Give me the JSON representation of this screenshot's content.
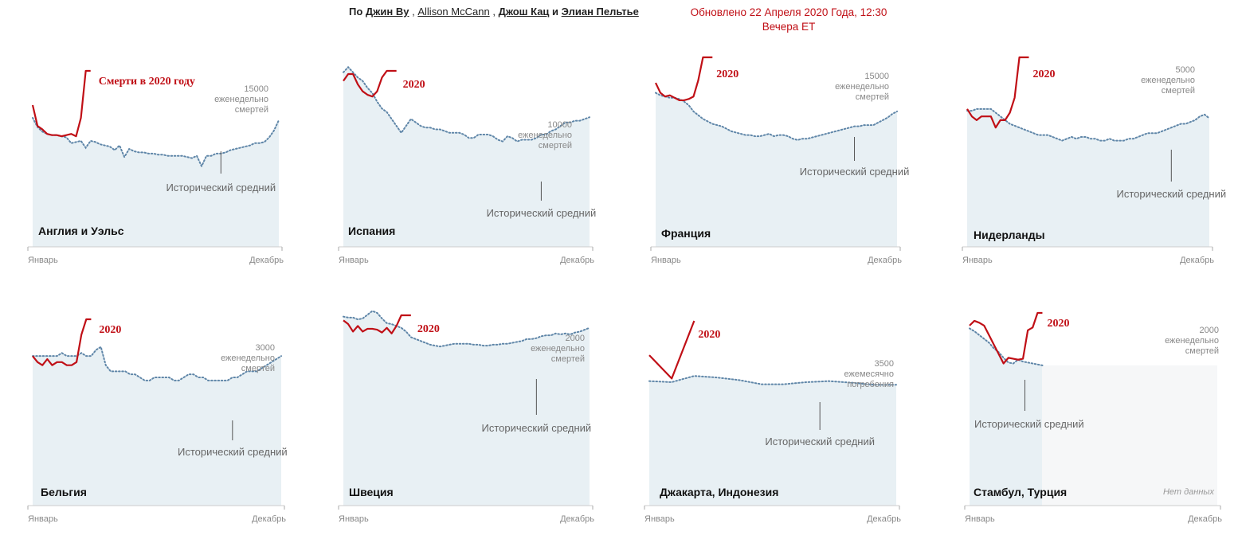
{
  "header": {
    "by_prefix": "По",
    "authors": [
      "Джин Ву",
      "Allison McCann",
      "Джош Кац",
      "Элиан Пельтье"
    ],
    "sep1": ",",
    "sep2": ",",
    "sep3": "и",
    "updated_line1": "Обновлено 22 Апреля 2020 Года, 12:30",
    "updated_line2": "Вечера ET"
  },
  "labels": {
    "x_start": "Январь",
    "x_end": "Декабрь",
    "historical": "Исторический средний",
    "no_data": "Нет данных"
  },
  "colors": {
    "series2020": "#c00f16",
    "historical": "#5f86a8",
    "fill": "#e8f0f4",
    "nodata_fill": "#f6f7f8"
  },
  "chart_data": [
    {
      "type": "line",
      "name": "Англия и Уэльс",
      "label_2020": "Смерти в 2020 году",
      "scale_lines": [
        "15000",
        "еженедельно",
        "смертей"
      ],
      "scale_value": 15000,
      "ylim": [
        0,
        15000
      ],
      "x_range": [
        1,
        52
      ],
      "historical": [
        11200,
        10400,
        10000,
        9800,
        9700,
        9700,
        9600,
        9500,
        9000,
        9100,
        9200,
        8600,
        9200,
        9100,
        8900,
        8800,
        8700,
        8400,
        8800,
        7800,
        8500,
        8300,
        8200,
        8200,
        8100,
        8100,
        8000,
        8000,
        7900,
        7900,
        7900,
        7900,
        7800,
        7700,
        7900,
        7000,
        7900,
        7900,
        8100,
        8100,
        8200,
        8400,
        8500,
        8600,
        8700,
        8800,
        9000,
        9000,
        9100,
        9500,
        10100,
        11000
      ],
      "y2020": [
        12300,
        10500,
        10200,
        9800,
        9700,
        9700,
        9600,
        9700,
        9800,
        9600,
        11200,
        16700,
        18500
      ]
    },
    {
      "type": "line",
      "name": "Испания",
      "label_2020": "2020",
      "scale_lines": [
        "10000",
        "еженедельно",
        "смертей"
      ],
      "scale_value": 10000,
      "ylim": [
        0,
        10000
      ],
      "x_range": [
        1,
        52
      ],
      "historical": [
        10100,
        10400,
        10100,
        9800,
        9600,
        9200,
        8900,
        8400,
        8000,
        7800,
        7400,
        7000,
        6600,
        7000,
        7400,
        7200,
        7000,
        6900,
        6900,
        6800,
        6800,
        6700,
        6600,
        6600,
        6600,
        6500,
        6300,
        6300,
        6500,
        6500,
        6500,
        6400,
        6200,
        6100,
        6400,
        6300,
        6100,
        6200,
        6200,
        6200,
        6300,
        6500,
        6500,
        6700,
        6800,
        7000,
        7200,
        7200,
        7300,
        7300,
        7400,
        7500
      ],
      "y2020": [
        9600,
        10000,
        10000,
        9400,
        9000,
        8800,
        8700,
        9000,
        9800,
        11600,
        15400,
        14800
      ]
    },
    {
      "type": "line",
      "name": "Франция",
      "label_2020": "2020",
      "scale_lines": [
        "15000",
        "еженедельно",
        "смертей"
      ],
      "scale_value": 15000,
      "ylim": [
        0,
        15000
      ],
      "x_range": [
        1,
        52
      ],
      "historical": [
        12400,
        12200,
        12100,
        12000,
        12000,
        11900,
        11700,
        11400,
        10900,
        10600,
        10300,
        10100,
        9900,
        9800,
        9700,
        9500,
        9300,
        9200,
        9100,
        9000,
        9000,
        8900,
        8900,
        9000,
        9100,
        8900,
        9000,
        9000,
        8900,
        8700,
        8600,
        8700,
        8700,
        8800,
        8900,
        9000,
        9100,
        9200,
        9300,
        9400,
        9500,
        9600,
        9700,
        9700,
        9800,
        9800,
        9800,
        10000,
        10200,
        10400,
        10700,
        10900
      ],
      "y2020": [
        13200,
        12400,
        12100,
        12200,
        12000,
        11800,
        11800,
        11900,
        12100,
        13400,
        16000,
        18500,
        20400
      ]
    },
    {
      "type": "line",
      "name": "Нидерланды",
      "label_2020": "2020",
      "scale_lines": [
        "5000",
        "еженедельно",
        "смертей"
      ],
      "scale_value": 5000,
      "ylim": [
        0,
        5000
      ],
      "x_range": [
        1,
        52
      ],
      "historical": [
        3650,
        3650,
        3700,
        3700,
        3700,
        3700,
        3600,
        3500,
        3400,
        3300,
        3250,
        3200,
        3150,
        3100,
        3050,
        3000,
        3000,
        3000,
        2950,
        2900,
        2850,
        2900,
        2950,
        2900,
        2950,
        2950,
        2900,
        2900,
        2850,
        2850,
        2900,
        2850,
        2850,
        2850,
        2900,
        2900,
        2950,
        3000,
        3050,
        3050,
        3050,
        3100,
        3150,
        3200,
        3250,
        3300,
        3300,
        3350,
        3400,
        3500,
        3550,
        3450
      ],
      "y2020": [
        3700,
        3500,
        3400,
        3500,
        3500,
        3500,
        3200,
        3400,
        3400,
        3600,
        4000,
        5100,
        5800,
        6000
      ]
    },
    {
      "type": "line",
      "name": "Бельгия",
      "label_2020": "2020",
      "scale_lines": [
        "3000",
        "еженедельно",
        "смертей"
      ],
      "scale_value": 3000,
      "ylim": [
        0,
        3000
      ],
      "x_range": [
        1,
        52
      ],
      "historical": [
        2450,
        2450,
        2450,
        2450,
        2450,
        2450,
        2500,
        2450,
        2450,
        2450,
        2500,
        2450,
        2450,
        2550,
        2600,
        2300,
        2200,
        2200,
        2200,
        2200,
        2150,
        2150,
        2100,
        2050,
        2050,
        2100,
        2100,
        2100,
        2100,
        2050,
        2050,
        2100,
        2150,
        2150,
        2100,
        2100,
        2050,
        2050,
        2050,
        2050,
        2050,
        2100,
        2100,
        2150,
        2200,
        2200,
        2200,
        2250,
        2300,
        2350,
        2400,
        2450
      ],
      "y2020": [
        2450,
        2350,
        2300,
        2400,
        2300,
        2350,
        2350,
        2300,
        2300,
        2350,
        2800,
        3600,
        4300
      ]
    },
    {
      "type": "line",
      "name": "Швеция",
      "label_2020": "2020",
      "scale_lines": [
        "2000",
        "еженедельно",
        "смертей"
      ],
      "scale_value": 2000,
      "ylim": [
        0,
        2000
      ],
      "x_range": [
        1,
        52
      ],
      "historical": [
        2020,
        2010,
        2010,
        1990,
        2000,
        2040,
        2080,
        2060,
        2000,
        1950,
        1940,
        1920,
        1900,
        1860,
        1800,
        1780,
        1760,
        1740,
        1720,
        1710,
        1700,
        1710,
        1720,
        1730,
        1730,
        1730,
        1730,
        1720,
        1720,
        1710,
        1710,
        1720,
        1720,
        1730,
        1730,
        1740,
        1750,
        1760,
        1780,
        1780,
        1790,
        1810,
        1820,
        1820,
        1840,
        1830,
        1840,
        1830,
        1850,
        1860,
        1880,
        1900
      ],
      "y2020": [
        1980,
        1940,
        1860,
        1920,
        1860,
        1890,
        1890,
        1880,
        1850,
        1900,
        1840,
        1920,
        2150,
        2450,
        2450
      ]
    },
    {
      "type": "line",
      "name": "Джакарта, Индонезия",
      "label_2020": "2020",
      "scale_lines": [
        "3500",
        "ежемесячно",
        "погребения"
      ],
      "scale_value": 3500,
      "ylim": [
        0,
        3500
      ],
      "x_range": [
        1,
        12
      ],
      "historical": [
        2400,
        2380,
        2500,
        2470,
        2420,
        2340,
        2340,
        2380,
        2400,
        2370,
        2330,
        2330
      ],
      "y2020": [
        2900,
        2450,
        4500
      ]
    },
    {
      "type": "line",
      "name": "Стамбул, Турция",
      "label_2020": "2020",
      "scale_lines": [
        "2000",
        "еженедельно",
        "смертей"
      ],
      "scale_value": 2000,
      "ylim": [
        0,
        2000
      ],
      "x_range": [
        1,
        52
      ],
      "historical": [
        1870,
        1840,
        1800,
        1760,
        1720,
        1660,
        1620,
        1560,
        1510,
        1500,
        1540,
        1520,
        1510,
        1500,
        1490,
        1480
      ],
      "y2020": [
        1900,
        1950,
        1930,
        1900,
        1800,
        1700,
        1600,
        1500,
        1560,
        1550,
        1540,
        1550,
        1850,
        1880,
        2300,
        2300
      ]
    }
  ]
}
